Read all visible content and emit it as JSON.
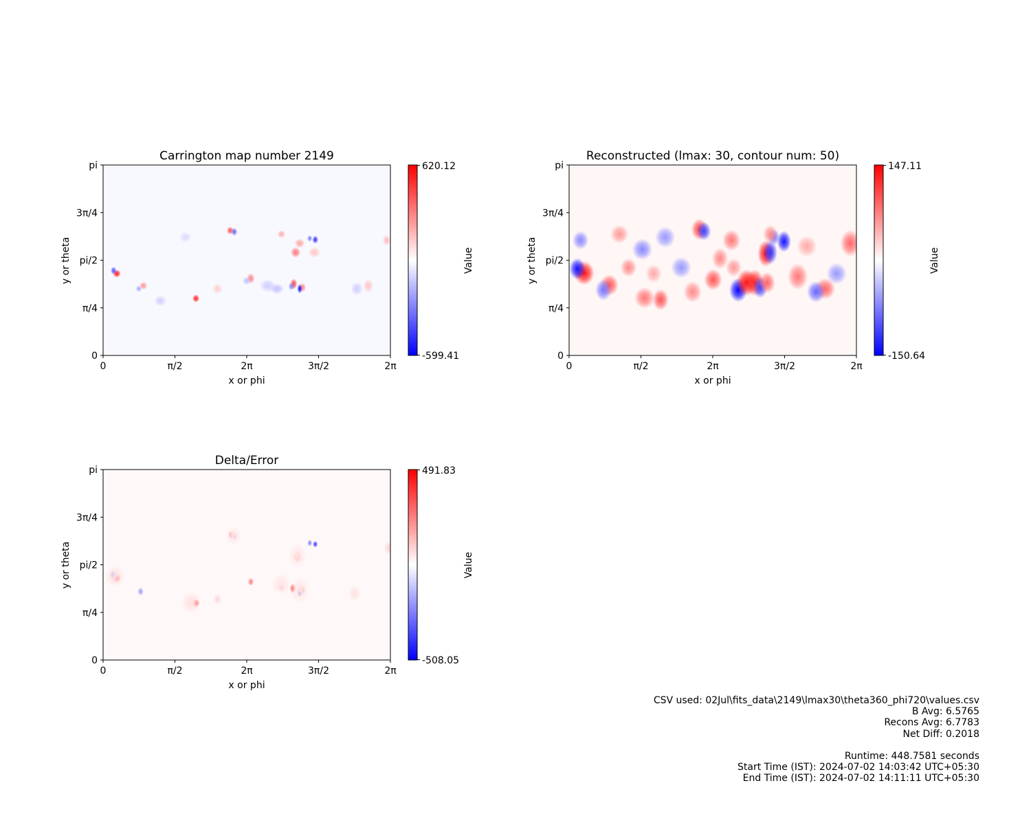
{
  "chart_data": [
    {
      "type": "heatmap",
      "title": "Carrington map number 2149",
      "xlabel": "x or phi",
      "ylabel": "y or theta",
      "xlim": [
        0,
        6.2832
      ],
      "ylim": [
        0,
        3.1416
      ],
      "x_tick_labels": [
        "0",
        "π/2",
        "2π",
        "3π/2",
        "2π"
      ],
      "y_tick_labels": [
        "0",
        "π/4",
        "pi/2",
        "3π/4",
        "pi"
      ],
      "colormap": "bwr",
      "colorbar": {
        "label": "Value",
        "min": -599.41,
        "max": 620.12,
        "min_label": "-599.41",
        "max_label": "620.12"
      },
      "features": [
        {
          "x": 0.3,
          "y": 1.35,
          "value": 560,
          "sx": 0.04,
          "sy": 0.03
        },
        {
          "x": 0.23,
          "y": 1.4,
          "value": -420,
          "sx": 0.03,
          "sy": 0.03
        },
        {
          "x": 0.88,
          "y": 1.15,
          "value": 260,
          "sx": 0.04,
          "sy": 0.03
        },
        {
          "x": 0.78,
          "y": 1.1,
          "value": -220,
          "sx": 0.03,
          "sy": 0.025
        },
        {
          "x": 2.03,
          "y": 0.94,
          "value": 540,
          "sx": 0.035,
          "sy": 0.03
        },
        {
          "x": 2.78,
          "y": 2.06,
          "value": 420,
          "sx": 0.035,
          "sy": 0.03
        },
        {
          "x": 2.87,
          "y": 2.04,
          "value": -380,
          "sx": 0.03,
          "sy": 0.03
        },
        {
          "x": 4.17,
          "y": 1.18,
          "value": 460,
          "sx": 0.035,
          "sy": 0.04
        },
        {
          "x": 4.12,
          "y": 1.14,
          "value": -300,
          "sx": 0.03,
          "sy": 0.03
        },
        {
          "x": 4.36,
          "y": 1.12,
          "value": 300,
          "sx": 0.035,
          "sy": 0.035
        },
        {
          "x": 4.3,
          "y": 1.1,
          "value": -590,
          "sx": 0.025,
          "sy": 0.035
        },
        {
          "x": 4.21,
          "y": 1.7,
          "value": 330,
          "sx": 0.05,
          "sy": 0.04
        },
        {
          "x": 4.64,
          "y": 1.91,
          "value": -500,
          "sx": 0.03,
          "sy": 0.03
        },
        {
          "x": 4.52,
          "y": 1.93,
          "value": -330,
          "sx": 0.025,
          "sy": 0.025
        },
        {
          "x": 4.3,
          "y": 1.85,
          "value": 220,
          "sx": 0.05,
          "sy": 0.035
        },
        {
          "x": 3.23,
          "y": 1.27,
          "value": 300,
          "sx": 0.04,
          "sy": 0.04
        },
        {
          "x": 3.9,
          "y": 2.0,
          "value": 200,
          "sx": 0.04,
          "sy": 0.03
        },
        {
          "x": 3.14,
          "y": 1.23,
          "value": -160,
          "sx": 0.04,
          "sy": 0.03
        },
        {
          "x": 2.5,
          "y": 1.1,
          "value": 120,
          "sx": 0.05,
          "sy": 0.04
        },
        {
          "x": 5.8,
          "y": 1.15,
          "value": 140,
          "sx": 0.05,
          "sy": 0.05
        },
        {
          "x": 6.2,
          "y": 1.9,
          "value": 170,
          "sx": 0.04,
          "sy": 0.04
        },
        {
          "x": 5.55,
          "y": 1.1,
          "value": -120,
          "sx": 0.06,
          "sy": 0.05
        },
        {
          "x": 3.8,
          "y": 1.1,
          "value": -150,
          "sx": 0.07,
          "sy": 0.04
        },
        {
          "x": 1.25,
          "y": 0.9,
          "value": -120,
          "sx": 0.06,
          "sy": 0.04
        },
        {
          "x": 3.6,
          "y": 1.15,
          "value": -120,
          "sx": 0.08,
          "sy": 0.05
        },
        {
          "x": 4.62,
          "y": 1.7,
          "value": 140,
          "sx": 0.06,
          "sy": 0.04
        },
        {
          "x": 1.8,
          "y": 1.95,
          "value": -90,
          "sx": 0.06,
          "sy": 0.04
        }
      ]
    },
    {
      "type": "heatmap",
      "title": "Reconstructed (lmax: 30, contour num: 50)",
      "xlabel": "x or phi",
      "ylabel": "y or theta",
      "xlim": [
        0,
        6.2832
      ],
      "ylim": [
        0,
        3.1416
      ],
      "x_tick_labels": [
        "0",
        "π/2",
        "2π",
        "3π/2",
        "2π"
      ],
      "y_tick_labels": [
        "0",
        "π/4",
        "pi/2",
        "3π/4",
        "pi"
      ],
      "colormap": "bwr",
      "colorbar": {
        "label": "Value",
        "min": -150.64,
        "max": 147.11,
        "min_label": "-150.64",
        "max_label": "147.11"
      },
      "features": [
        {
          "x": 0.33,
          "y": 1.36,
          "value": 140,
          "sx": 0.1,
          "sy": 0.09
        },
        {
          "x": 0.18,
          "y": 1.43,
          "value": -140,
          "sx": 0.08,
          "sy": 0.08
        },
        {
          "x": 0.25,
          "y": 1.9,
          "value": -70,
          "sx": 0.08,
          "sy": 0.07
        },
        {
          "x": 0.88,
          "y": 1.16,
          "value": 100,
          "sx": 0.09,
          "sy": 0.08
        },
        {
          "x": 0.75,
          "y": 1.08,
          "value": -80,
          "sx": 0.08,
          "sy": 0.08
        },
        {
          "x": 1.65,
          "y": 0.95,
          "value": 80,
          "sx": 0.1,
          "sy": 0.08
        },
        {
          "x": 2.0,
          "y": 0.92,
          "value": 100,
          "sx": 0.08,
          "sy": 0.08
        },
        {
          "x": 2.85,
          "y": 2.08,
          "value": 110,
          "sx": 0.08,
          "sy": 0.08
        },
        {
          "x": 2.95,
          "y": 2.05,
          "value": -110,
          "sx": 0.07,
          "sy": 0.07
        },
        {
          "x": 3.15,
          "y": 1.25,
          "value": 100,
          "sx": 0.09,
          "sy": 0.08
        },
        {
          "x": 3.7,
          "y": 1.08,
          "value": -150,
          "sx": 0.09,
          "sy": 0.09
        },
        {
          "x": 3.88,
          "y": 1.2,
          "value": 140,
          "sx": 0.1,
          "sy": 0.1
        },
        {
          "x": 4.06,
          "y": 1.2,
          "value": 130,
          "sx": 0.09,
          "sy": 0.1
        },
        {
          "x": 4.18,
          "y": 1.12,
          "value": -110,
          "sx": 0.07,
          "sy": 0.08
        },
        {
          "x": 4.3,
          "y": 1.68,
          "value": 140,
          "sx": 0.08,
          "sy": 0.1
        },
        {
          "x": 4.4,
          "y": 1.7,
          "value": -120,
          "sx": 0.07,
          "sy": 0.09
        },
        {
          "x": 4.33,
          "y": 1.2,
          "value": 90,
          "sx": 0.08,
          "sy": 0.08
        },
        {
          "x": 4.7,
          "y": 1.88,
          "value": -140,
          "sx": 0.07,
          "sy": 0.08
        },
        {
          "x": 4.48,
          "y": 1.95,
          "value": -80,
          "sx": 0.06,
          "sy": 0.06
        },
        {
          "x": 4.4,
          "y": 2.0,
          "value": 70,
          "sx": 0.07,
          "sy": 0.07
        },
        {
          "x": 2.7,
          "y": 1.05,
          "value": 70,
          "sx": 0.09,
          "sy": 0.08
        },
        {
          "x": 3.3,
          "y": 1.6,
          "value": 70,
          "sx": 0.08,
          "sy": 0.08
        },
        {
          "x": 5.6,
          "y": 1.1,
          "value": 90,
          "sx": 0.1,
          "sy": 0.08
        },
        {
          "x": 5.4,
          "y": 1.05,
          "value": -90,
          "sx": 0.09,
          "sy": 0.08
        },
        {
          "x": 6.15,
          "y": 1.85,
          "value": 90,
          "sx": 0.1,
          "sy": 0.1
        },
        {
          "x": 5.0,
          "y": 1.3,
          "value": 80,
          "sx": 0.1,
          "sy": 0.1
        },
        {
          "x": 1.3,
          "y": 1.45,
          "value": 70,
          "sx": 0.08,
          "sy": 0.07
        },
        {
          "x": 1.6,
          "y": 1.75,
          "value": -70,
          "sx": 0.1,
          "sy": 0.08
        },
        {
          "x": 2.45,
          "y": 1.45,
          "value": -60,
          "sx": 0.1,
          "sy": 0.08
        },
        {
          "x": 3.55,
          "y": 1.9,
          "value": 80,
          "sx": 0.09,
          "sy": 0.08
        },
        {
          "x": 1.1,
          "y": 2.0,
          "value": 60,
          "sx": 0.09,
          "sy": 0.07
        },
        {
          "x": 2.1,
          "y": 1.95,
          "value": -60,
          "sx": 0.1,
          "sy": 0.08
        },
        {
          "x": 5.85,
          "y": 1.35,
          "value": -60,
          "sx": 0.1,
          "sy": 0.08
        },
        {
          "x": 3.6,
          "y": 1.45,
          "value": 60,
          "sx": 0.08,
          "sy": 0.07
        },
        {
          "x": 1.85,
          "y": 1.35,
          "value": 50,
          "sx": 0.08,
          "sy": 0.07
        },
        {
          "x": 5.2,
          "y": 1.8,
          "value": 50,
          "sx": 0.1,
          "sy": 0.08
        }
      ]
    },
    {
      "type": "heatmap",
      "title": "Delta/Error",
      "xlabel": "x or phi",
      "ylabel": "y or theta",
      "xlim": [
        0,
        6.2832
      ],
      "ylim": [
        0,
        3.1416
      ],
      "x_tick_labels": [
        "0",
        "π/2",
        "2π",
        "3π/2",
        "2π"
      ],
      "y_tick_labels": [
        "0",
        "π/4",
        "pi/2",
        "3π/4",
        "pi"
      ],
      "colormap": "bwr",
      "colorbar": {
        "label": "Value",
        "min": -508.05,
        "max": 491.83,
        "min_label": "-508.05",
        "max_label": "491.83"
      },
      "features": [
        {
          "x": 0.3,
          "y": 1.35,
          "value": 450,
          "sx": 0.035,
          "sy": 0.03
        },
        {
          "x": 0.22,
          "y": 1.4,
          "value": -320,
          "sx": 0.03,
          "sy": 0.03
        },
        {
          "x": 0.26,
          "y": 1.38,
          "value": 60,
          "sx": 0.1,
          "sy": 0.08
        },
        {
          "x": 0.82,
          "y": 1.13,
          "value": -200,
          "sx": 0.03,
          "sy": 0.03
        },
        {
          "x": 2.03,
          "y": 0.94,
          "value": 450,
          "sx": 0.035,
          "sy": 0.03
        },
        {
          "x": 2.8,
          "y": 2.06,
          "value": 330,
          "sx": 0.03,
          "sy": 0.03
        },
        {
          "x": 2.87,
          "y": 2.04,
          "value": -300,
          "sx": 0.025,
          "sy": 0.025
        },
        {
          "x": 4.25,
          "y": 1.7,
          "value": 260,
          "sx": 0.04,
          "sy": 0.04
        },
        {
          "x": 4.3,
          "y": 1.12,
          "value": -500,
          "sx": 0.025,
          "sy": 0.035
        },
        {
          "x": 4.36,
          "y": 1.15,
          "value": 260,
          "sx": 0.03,
          "sy": 0.03
        },
        {
          "x": 4.15,
          "y": 1.18,
          "value": 380,
          "sx": 0.03,
          "sy": 0.035
        },
        {
          "x": 4.64,
          "y": 1.91,
          "value": -400,
          "sx": 0.025,
          "sy": 0.025
        },
        {
          "x": 4.52,
          "y": 1.93,
          "value": -250,
          "sx": 0.025,
          "sy": 0.025
        },
        {
          "x": 3.23,
          "y": 1.29,
          "value": 260,
          "sx": 0.03,
          "sy": 0.03
        },
        {
          "x": 3.9,
          "y": 1.2,
          "value": 200,
          "sx": 0.03,
          "sy": 0.03
        },
        {
          "x": 1.93,
          "y": 0.95,
          "value": 60,
          "sx": 0.1,
          "sy": 0.08
        },
        {
          "x": 2.5,
          "y": 1.0,
          "value": 80,
          "sx": 0.04,
          "sy": 0.04
        },
        {
          "x": 6.25,
          "y": 1.85,
          "value": 80,
          "sx": 0.05,
          "sy": 0.05
        },
        {
          "x": 4.3,
          "y": 1.15,
          "value": 50,
          "sx": 0.1,
          "sy": 0.1
        },
        {
          "x": 4.25,
          "y": 1.72,
          "value": 50,
          "sx": 0.09,
          "sy": 0.09
        },
        {
          "x": 2.85,
          "y": 2.05,
          "value": 50,
          "sx": 0.08,
          "sy": 0.07
        },
        {
          "x": 3.9,
          "y": 1.25,
          "value": 50,
          "sx": 0.1,
          "sy": 0.08
        },
        {
          "x": 5.5,
          "y": 1.1,
          "value": 60,
          "sx": 0.06,
          "sy": 0.06
        }
      ]
    }
  ],
  "info": {
    "csv_used": "CSV used: 02Jul\\fits_data\\2149\\lmax30\\theta360_phi720\\values.csv",
    "b_avg": "B Avg: 6.5765",
    "recons_avg": "Recons Avg: 6.7783",
    "net_diff": "Net Diff: 0.2018",
    "runtime": "Runtime: 448.7581 seconds",
    "start_time": "Start Time (IST): 2024-07-02 14:03:42 UTC+05:30",
    "end_time": "End Time (IST): 2024-07-02 14:11:11 UTC+05:30"
  }
}
